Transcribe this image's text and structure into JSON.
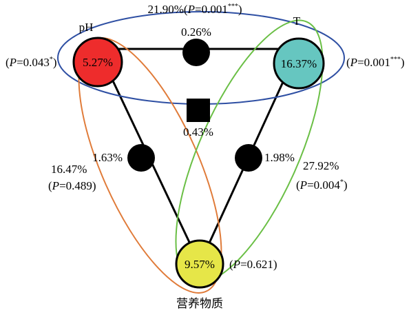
{
  "variables": {
    "ph": {
      "name": "pH",
      "value": "5.27%",
      "p_prefix": "(",
      "p_symbol": "P",
      "p_value": "=0.043",
      "p_stars": "*",
      "p_suffix": ")",
      "color": "#ee2c2c"
    },
    "t": {
      "name": "T",
      "value": "16.37%",
      "p_prefix": "(",
      "p_symbol": "P",
      "p_value": "=0.001",
      "p_stars": "***",
      "p_suffix": ")",
      "color": "#66c6c0"
    },
    "nutrients": {
      "name": "营养物质",
      "value": "9.57%",
      "p_prefix": "(",
      "p_symbol": "P",
      "p_value": "=0.621",
      "p_suffix": ")",
      "color": "#e6e648"
    }
  },
  "pairs": {
    "ph_t": {
      "value": "0.26%"
    },
    "ph_nutrients": {
      "value": "1.63%"
    },
    "t_nutrients": {
      "value": "1.98%"
    }
  },
  "center": {
    "value": "0.43%"
  },
  "groups": {
    "ph_t": {
      "value": "21.90%",
      "p_prefix": "(",
      "p_symbol": "P",
      "p_value": "=0.001",
      "p_stars": "***",
      "p_suffix": ")",
      "color": "#2e4fa3"
    },
    "ph_nutrients": {
      "value": "16.47%",
      "p_prefix": "(",
      "p_symbol": "P",
      "p_value": "=0.489",
      "p_suffix": ")",
      "color": "#e07b39"
    },
    "t_nutrients": {
      "value": "27.92%",
      "p_prefix": "(",
      "p_symbol": "P",
      "p_value": "=0.004",
      "p_stars": "*",
      "p_suffix": ")",
      "color": "#6abf45"
    }
  }
}
